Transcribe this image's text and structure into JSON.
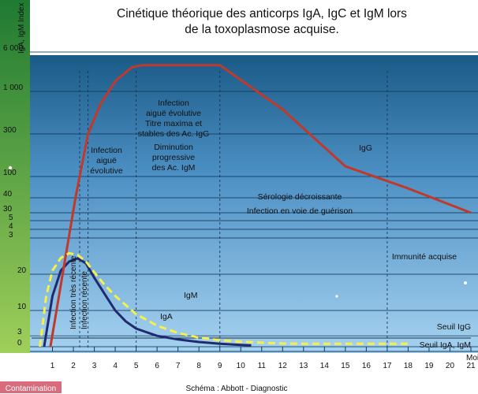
{
  "chart_data": {
    "type": "line",
    "title": "Cinétique théorique des anticorps IgA, IgC et IgM lors de la toxoplasmose acquise.",
    "title_lines": [
      "Cinétique théorique des anticorps IgA, IgC et IgM lors",
      "de la toxoplasmose acquise."
    ],
    "ylabel": "IgA, IgM Index",
    "xlabel": "Mois",
    "x_ticks": [
      "1",
      "2",
      "3",
      "4",
      "5",
      "6",
      "7",
      "8",
      "9",
      "10",
      "11",
      "12",
      "13",
      "14",
      "15",
      "16",
      "17",
      "18",
      "19",
      "20",
      "21"
    ],
    "y_ticks_upper": [
      "6 000",
      "1 000",
      "300",
      "100",
      "40",
      "30"
    ],
    "y_ticks_upper_values": [
      6000,
      1000,
      300,
      100,
      40,
      30
    ],
    "y_ticks_mid": [
      "5",
      "4",
      "3"
    ],
    "y_ticks_mid_values": [
      5,
      4,
      3
    ],
    "y_ticks_lower": [
      "20",
      "10",
      "3",
      "0"
    ],
    "y_ticks_lower_values": [
      20,
      10,
      3,
      0
    ],
    "lower_ymax": 30,
    "x_range": [
      0,
      21
    ],
    "grid": true,
    "colors": {
      "background_top": "#0f4f7a",
      "background_bottom": "#a6d2f0",
      "y_axis_band": "#2e8b3c",
      "IgG": "#c0392b",
      "IgM": "#f5f04a",
      "IgA": "#202a6e",
      "contamination_box": "#d86b7c"
    },
    "series": [
      {
        "name": "IgG",
        "scale": "upper",
        "x": [
          0.9,
          2.1,
          2.7,
          3.3,
          4.0,
          4.8,
          5.3,
          6.5,
          8.0,
          9.0,
          12.0,
          15.0,
          18.0,
          21.0
        ],
        "y": [
          1,
          40,
          300,
          700,
          1600,
          3000,
          3300,
          3300,
          3300,
          3300,
          600,
          130,
          60,
          30
        ]
      },
      {
        "name": "IgM",
        "scale": "lower",
        "x": [
          0.4,
          0.7,
          1.0,
          1.4,
          1.8,
          2.2,
          2.6,
          3.0,
          3.5,
          4.0,
          5.0,
          6.0,
          7.0,
          8.0,
          9.0,
          10.0,
          11.0,
          12.0,
          13.0,
          14.0,
          16.0,
          18.0
        ],
        "y": [
          0,
          14,
          21,
          24.5,
          25.8,
          25.3,
          23.5,
          20.5,
          17,
          14,
          9,
          5.8,
          3.8,
          2.5,
          1.8,
          1.4,
          1.1,
          0.9,
          0.8,
          0.8,
          0.8,
          0.8
        ]
      },
      {
        "name": "IgA",
        "scale": "lower",
        "x": [
          0.6,
          1.0,
          1.4,
          1.8,
          2.2,
          2.6,
          3.0,
          3.5,
          4.0,
          4.5,
          5.0,
          6.0,
          7.0,
          8.0,
          9.0,
          10.0,
          10.5
        ],
        "y": [
          0,
          14,
          21,
          23.5,
          24.4,
          23,
          19,
          14.5,
          10,
          7,
          5,
          3,
          2,
          1.3,
          0.8,
          0.5,
          0.4
        ]
      }
    ],
    "phase_lines_x": [
      2.3,
      2.7,
      5.0,
      9.0,
      17.0
    ],
    "seuil_IgG_value": 2.4,
    "seuil_IgA_IgM_value": 0.8,
    "annotations": {
      "infection_tres_recente": "Infection très récente",
      "infection_recente": "Infection récente",
      "infection_aigue": [
        "Infection",
        "aiguë",
        "évolutive"
      ],
      "infection_aigue_titre": [
        "Infection",
        "aiguë évolutive",
        "Titre maxima et",
        "stables des Ac. IgG",
        "Diminution",
        "progressive",
        "des Ac. IgM"
      ],
      "serologie": [
        "Sérologie décroissante",
        "Infection en voie de guérison"
      ],
      "immunite": "Immunité acquise",
      "seuil_igg": "Seuil IgG",
      "seuil_iga_igm": "Seuil IgA, IgM",
      "igg_label": "IgG",
      "igm_label": "IgM",
      "iga_label": "IgA",
      "contamination": "Contamination",
      "credit": "Schéma : Abbott - Diagnostic"
    }
  }
}
